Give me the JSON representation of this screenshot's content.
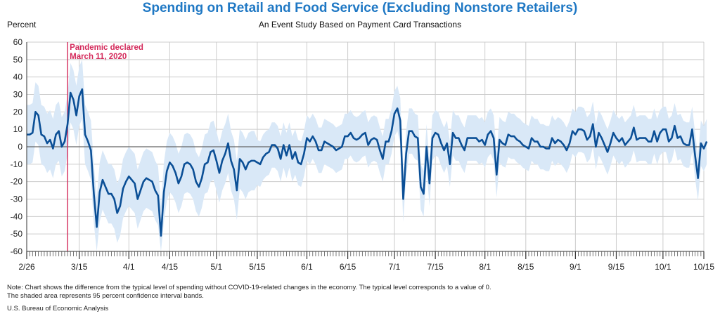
{
  "title": "Spending on Retail and Food Service (Excluding Nonstore Retailers)",
  "subtitle": "An Event Study Based on Payment Card Transactions",
  "note_line1": "Note: Chart shows the difference from the typical level of spending without COVID-19-related changes in the economy. The typical level corresponds to a value of 0.",
  "note_line2": "The shaded area represents 95 percent confidence interval bands.",
  "source": "U.S. Bureau of Economic Analysis",
  "colors": {
    "title": "#1f78c4",
    "line": "#0b4f96",
    "band": "#d9e8f7",
    "event": "#d42a5b",
    "grid": "#cccccc",
    "zero": "#666666"
  },
  "chart_data": {
    "type": "line",
    "title": "Spending on Retail and Food Service (Excluding Nonstore Retailers)",
    "subtitle": "An Event Study Based on Payment Card Transactions",
    "ylabel": "Percent",
    "ylim": [
      -60,
      60
    ],
    "yticks": [
      -60,
      -50,
      -40,
      -30,
      -20,
      -10,
      0,
      10,
      20,
      30,
      40,
      50,
      60
    ],
    "x_start": "2020-02-26",
    "x_end": "2020-10-15",
    "xtick_labels": [
      {
        "date": "2020-02-26",
        "label": "2/26"
      },
      {
        "date": "2020-03-15",
        "label": "3/15"
      },
      {
        "date": "2020-04-01",
        "label": "4/1"
      },
      {
        "date": "2020-04-15",
        "label": "4/15"
      },
      {
        "date": "2020-05-01",
        "label": "5/1"
      },
      {
        "date": "2020-05-15",
        "label": "5/15"
      },
      {
        "date": "2020-06-01",
        "label": "6/1"
      },
      {
        "date": "2020-06-15",
        "label": "6/15"
      },
      {
        "date": "2020-07-01",
        "label": "7/1"
      },
      {
        "date": "2020-07-15",
        "label": "7/15"
      },
      {
        "date": "2020-08-01",
        "label": "8/1"
      },
      {
        "date": "2020-08-15",
        "label": "8/15"
      },
      {
        "date": "2020-09-01",
        "label": "9/1"
      },
      {
        "date": "2020-09-15",
        "label": "9/15"
      },
      {
        "date": "2020-10-01",
        "label": "10/1"
      },
      {
        "date": "2020-10-15",
        "label": "10/15"
      }
    ],
    "grid": true,
    "annotation": {
      "date": "2020-03-11",
      "line1": "Pandemic declared",
      "line2": "March 11, 2020"
    },
    "series": [
      {
        "values": [
          [
            "2020-02-26",
            7
          ],
          [
            "2020-02-27",
            7
          ],
          [
            "2020-02-28",
            8
          ],
          [
            "2020-02-29",
            20
          ],
          [
            "2020-03-01",
            18
          ],
          [
            "2020-03-02",
            7
          ],
          [
            "2020-03-03",
            6
          ],
          [
            "2020-03-04",
            2
          ],
          [
            "2020-03-05",
            4
          ],
          [
            "2020-03-06",
            -1
          ],
          [
            "2020-03-07",
            7
          ],
          [
            "2020-03-08",
            9
          ],
          [
            "2020-03-09",
            0
          ],
          [
            "2020-03-10",
            3
          ],
          [
            "2020-03-11",
            13
          ],
          [
            "2020-03-12",
            31
          ],
          [
            "2020-03-13",
            27
          ],
          [
            "2020-03-14",
            18
          ],
          [
            "2020-03-15",
            29
          ],
          [
            "2020-03-16",
            33
          ],
          [
            "2020-03-17",
            7
          ],
          [
            "2020-03-18",
            3
          ],
          [
            "2020-03-19",
            -2
          ],
          [
            "2020-03-20",
            -27
          ],
          [
            "2020-03-21",
            -46
          ],
          [
            "2020-03-22",
            -26
          ],
          [
            "2020-03-23",
            -19
          ],
          [
            "2020-03-24",
            -23
          ],
          [
            "2020-03-25",
            -27
          ],
          [
            "2020-03-26",
            -27
          ],
          [
            "2020-03-27",
            -30
          ],
          [
            "2020-03-28",
            -38
          ],
          [
            "2020-03-29",
            -34
          ],
          [
            "2020-03-30",
            -24
          ],
          [
            "2020-03-31",
            -20
          ],
          [
            "2020-04-01",
            -17
          ],
          [
            "2020-04-02",
            -19
          ],
          [
            "2020-04-03",
            -21
          ],
          [
            "2020-04-04",
            -30
          ],
          [
            "2020-04-05",
            -25
          ],
          [
            "2020-04-06",
            -20
          ],
          [
            "2020-04-07",
            -18
          ],
          [
            "2020-04-08",
            -19
          ],
          [
            "2020-04-09",
            -20
          ],
          [
            "2020-04-10",
            -25
          ],
          [
            "2020-04-11",
            -28
          ],
          [
            "2020-04-12",
            -51
          ],
          [
            "2020-04-13",
            -26
          ],
          [
            "2020-04-14",
            -14
          ],
          [
            "2020-04-15",
            -9
          ],
          [
            "2020-04-16",
            -11
          ],
          [
            "2020-04-17",
            -15
          ],
          [
            "2020-04-18",
            -21
          ],
          [
            "2020-04-19",
            -17
          ],
          [
            "2020-04-20",
            -10
          ],
          [
            "2020-04-21",
            -9
          ],
          [
            "2020-04-22",
            -10
          ],
          [
            "2020-04-23",
            -13
          ],
          [
            "2020-04-24",
            -20
          ],
          [
            "2020-04-25",
            -23
          ],
          [
            "2020-04-26",
            -18
          ],
          [
            "2020-04-27",
            -10
          ],
          [
            "2020-04-28",
            -9
          ],
          [
            "2020-04-29",
            -3
          ],
          [
            "2020-04-30",
            -2
          ],
          [
            "2020-05-01",
            -8
          ],
          [
            "2020-05-02",
            -15
          ],
          [
            "2020-05-03",
            -8
          ],
          [
            "2020-05-04",
            -4
          ],
          [
            "2020-05-05",
            2
          ],
          [
            "2020-05-06",
            -8
          ],
          [
            "2020-05-07",
            -13
          ],
          [
            "2020-05-08",
            -25
          ],
          [
            "2020-05-09",
            -7
          ],
          [
            "2020-05-10",
            -9
          ],
          [
            "2020-05-11",
            -13
          ],
          [
            "2020-05-12",
            -9
          ],
          [
            "2020-05-13",
            -8
          ],
          [
            "2020-05-14",
            -8
          ],
          [
            "2020-05-15",
            -9
          ],
          [
            "2020-05-16",
            -10
          ],
          [
            "2020-05-17",
            -6
          ],
          [
            "2020-05-18",
            -4
          ],
          [
            "2020-05-19",
            -3
          ],
          [
            "2020-05-20",
            1
          ],
          [
            "2020-05-21",
            1
          ],
          [
            "2020-05-22",
            -1
          ],
          [
            "2020-05-23",
            -7
          ],
          [
            "2020-05-24",
            1
          ],
          [
            "2020-05-25",
            -5
          ],
          [
            "2020-05-26",
            1
          ],
          [
            "2020-05-27",
            -7
          ],
          [
            "2020-05-28",
            -3
          ],
          [
            "2020-05-29",
            -9
          ],
          [
            "2020-05-30",
            -10
          ],
          [
            "2020-05-31",
            -4
          ],
          [
            "2020-06-01",
            5
          ],
          [
            "2020-06-02",
            3
          ],
          [
            "2020-06-03",
            6
          ],
          [
            "2020-06-04",
            3
          ],
          [
            "2020-06-05",
            -2
          ],
          [
            "2020-06-06",
            -2
          ],
          [
            "2020-06-07",
            3
          ],
          [
            "2020-06-08",
            2
          ],
          [
            "2020-06-09",
            1
          ],
          [
            "2020-06-10",
            0
          ],
          [
            "2020-06-11",
            -2
          ],
          [
            "2020-06-12",
            -1
          ],
          [
            "2020-06-13",
            0
          ],
          [
            "2020-06-14",
            6
          ],
          [
            "2020-06-15",
            6
          ],
          [
            "2020-06-16",
            8
          ],
          [
            "2020-06-17",
            5
          ],
          [
            "2020-06-18",
            4
          ],
          [
            "2020-06-19",
            5
          ],
          [
            "2020-06-20",
            7
          ],
          [
            "2020-06-21",
            8
          ],
          [
            "2020-06-22",
            1
          ],
          [
            "2020-06-23",
            4
          ],
          [
            "2020-06-24",
            5
          ],
          [
            "2020-06-25",
            4
          ],
          [
            "2020-06-26",
            -2
          ],
          [
            "2020-06-27",
            -7
          ],
          [
            "2020-06-28",
            3
          ],
          [
            "2020-06-29",
            3
          ],
          [
            "2020-06-30",
            9
          ],
          [
            "2020-07-01",
            19
          ],
          [
            "2020-07-02",
            22
          ],
          [
            "2020-07-03",
            15
          ],
          [
            "2020-07-04",
            -30
          ],
          [
            "2020-07-05",
            -4
          ],
          [
            "2020-07-06",
            9
          ],
          [
            "2020-07-07",
            9
          ],
          [
            "2020-07-08",
            6
          ],
          [
            "2020-07-09",
            5
          ],
          [
            "2020-07-10",
            -23
          ],
          [
            "2020-07-11",
            -27
          ],
          [
            "2020-07-12",
            0
          ],
          [
            "2020-07-13",
            -21
          ],
          [
            "2020-07-14",
            5
          ],
          [
            "2020-07-15",
            8
          ],
          [
            "2020-07-16",
            7
          ],
          [
            "2020-07-17",
            2
          ],
          [
            "2020-07-18",
            -2
          ],
          [
            "2020-07-19",
            2
          ],
          [
            "2020-07-20",
            -10
          ],
          [
            "2020-07-21",
            8
          ],
          [
            "2020-07-22",
            5
          ],
          [
            "2020-07-23",
            5
          ],
          [
            "2020-07-24",
            1
          ],
          [
            "2020-07-25",
            -2
          ],
          [
            "2020-07-26",
            5
          ],
          [
            "2020-07-27",
            5
          ],
          [
            "2020-07-28",
            5
          ],
          [
            "2020-07-29",
            5
          ],
          [
            "2020-07-30",
            3
          ],
          [
            "2020-07-31",
            4
          ],
          [
            "2020-08-01",
            1
          ],
          [
            "2020-08-02",
            7
          ],
          [
            "2020-08-03",
            9
          ],
          [
            "2020-08-04",
            5
          ],
          [
            "2020-08-05",
            -16
          ],
          [
            "2020-08-06",
            4
          ],
          [
            "2020-08-07",
            2
          ],
          [
            "2020-08-08",
            1
          ],
          [
            "2020-08-09",
            7
          ],
          [
            "2020-08-10",
            6
          ],
          [
            "2020-08-11",
            6
          ],
          [
            "2020-08-12",
            4
          ],
          [
            "2020-08-13",
            3
          ],
          [
            "2020-08-14",
            1
          ],
          [
            "2020-08-15",
            0
          ],
          [
            "2020-08-16",
            -1
          ],
          [
            "2020-08-17",
            5
          ],
          [
            "2020-08-18",
            3
          ],
          [
            "2020-08-19",
            3
          ],
          [
            "2020-08-20",
            0
          ],
          [
            "2020-08-21",
            0
          ],
          [
            "2020-08-22",
            -1
          ],
          [
            "2020-08-23",
            -1
          ],
          [
            "2020-08-24",
            5
          ],
          [
            "2020-08-25",
            2
          ],
          [
            "2020-08-26",
            4
          ],
          [
            "2020-08-27",
            3
          ],
          [
            "2020-08-28",
            1
          ],
          [
            "2020-08-29",
            -2
          ],
          [
            "2020-08-30",
            2
          ],
          [
            "2020-08-31",
            9
          ],
          [
            "2020-09-01",
            7
          ],
          [
            "2020-09-02",
            10
          ],
          [
            "2020-09-03",
            10
          ],
          [
            "2020-09-04",
            9
          ],
          [
            "2020-09-05",
            4
          ],
          [
            "2020-09-06",
            6
          ],
          [
            "2020-09-07",
            13
          ],
          [
            "2020-09-08",
            0
          ],
          [
            "2020-09-09",
            8
          ],
          [
            "2020-09-10",
            5
          ],
          [
            "2020-09-11",
            1
          ],
          [
            "2020-09-12",
            -3
          ],
          [
            "2020-09-13",
            2
          ],
          [
            "2020-09-14",
            8
          ],
          [
            "2020-09-15",
            5
          ],
          [
            "2020-09-16",
            3
          ],
          [
            "2020-09-17",
            5
          ],
          [
            "2020-09-18",
            1
          ],
          [
            "2020-09-19",
            3
          ],
          [
            "2020-09-20",
            5
          ],
          [
            "2020-09-21",
            11
          ],
          [
            "2020-09-22",
            4
          ],
          [
            "2020-09-23",
            5
          ],
          [
            "2020-09-24",
            5
          ],
          [
            "2020-09-25",
            5
          ],
          [
            "2020-09-26",
            3
          ],
          [
            "2020-09-27",
            3
          ],
          [
            "2020-09-28",
            9
          ],
          [
            "2020-09-29",
            3
          ],
          [
            "2020-09-30",
            8
          ],
          [
            "2020-10-01",
            10
          ],
          [
            "2020-10-02",
            10
          ],
          [
            "2020-10-03",
            3
          ],
          [
            "2020-10-04",
            5
          ],
          [
            "2020-10-05",
            12
          ],
          [
            "2020-10-06",
            5
          ],
          [
            "2020-10-07",
            6
          ],
          [
            "2020-10-08",
            2
          ],
          [
            "2020-10-09",
            1
          ],
          [
            "2020-10-10",
            1
          ],
          [
            "2020-10-11",
            10
          ],
          [
            "2020-10-12",
            -5
          ],
          [
            "2020-10-13",
            -18
          ],
          [
            "2020-10-14",
            2
          ],
          [
            "2020-10-15",
            -1
          ],
          [
            "2020-10-16",
            3
          ]
        ],
        "ci_halfwidth_early": 17,
        "ci_halfwidth_late": 13,
        "ci_halfwidth_change_date": "2020-05-15"
      }
    ]
  }
}
